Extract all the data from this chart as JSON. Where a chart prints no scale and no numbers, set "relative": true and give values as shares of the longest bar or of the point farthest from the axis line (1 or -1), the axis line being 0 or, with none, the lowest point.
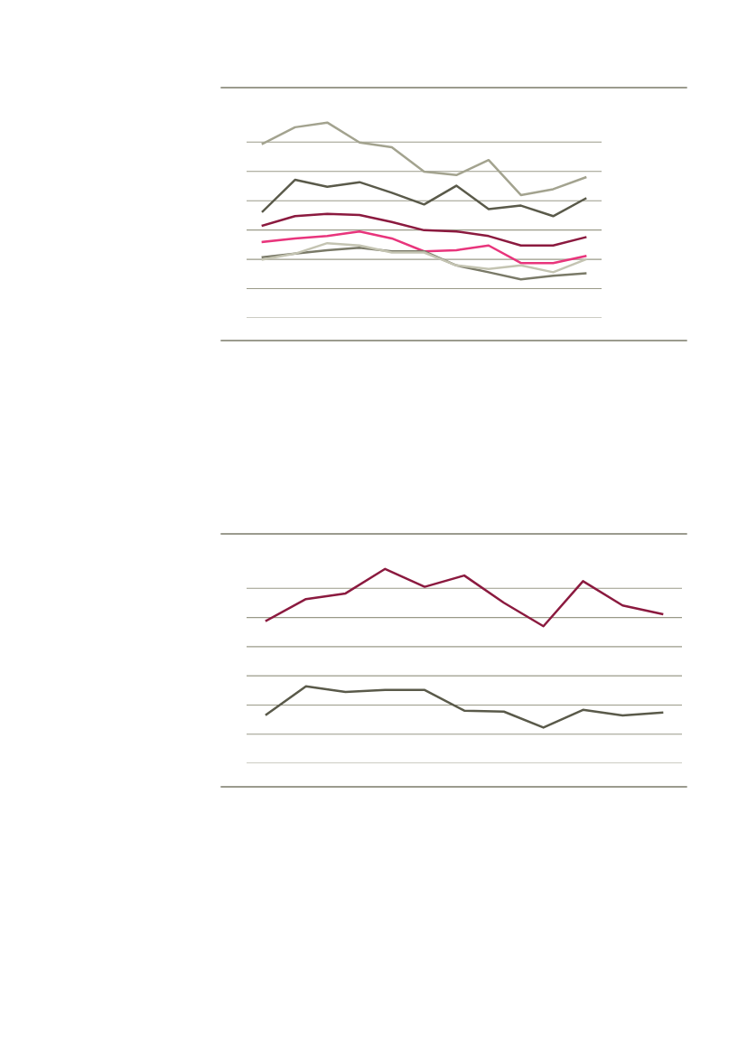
{
  "chart_data": [
    {
      "type": "line",
      "relative": true,
      "grid": "y",
      "categories": [
        null,
        null,
        null,
        null,
        null,
        null,
        null,
        null,
        null,
        null,
        null
      ],
      "series": [
        {
          "color": "#8b1a3f",
          "values": [
            0.473,
            0.521,
            0.533,
            0.527,
            0.491,
            0.449,
            0.443,
            0.419,
            0.371,
            0.371,
            0.413
          ]
        },
        {
          "color": "#a3a38f",
          "values": [
            0.892,
            0.976,
            1,
            0.898,
            0.874,
            0.749,
            0.731,
            0.808,
            0.629,
            0.659,
            0.719
          ]
        },
        {
          "color": "#5a5a4a",
          "values": [
            0.545,
            0.707,
            0.671,
            0.695,
            0.641,
            0.581,
            0.677,
            0.557,
            0.575,
            0.521,
            0.611
          ]
        },
        {
          "color": "#e8357c",
          "values": [
            0.389,
            0.407,
            0.419,
            0.443,
            0.407,
            0.341,
            0.347,
            0.371,
            0.281,
            0.281,
            0.317
          ]
        },
        {
          "color": "#7a7a68",
          "values": [
            0.311,
            0.329,
            0.347,
            0.359,
            0.341,
            0.341,
            0.269,
            0.234,
            0.198,
            0.216,
            0.228
          ]
        },
        {
          "color": "#c4c4b2",
          "values": [
            0.299,
            0.329,
            0.383,
            0.371,
            0.335,
            0.335,
            0.269,
            0.251,
            0.269,
            0.234,
            0.299
          ]
        }
      ]
    },
    {
      "type": "line",
      "relative": true,
      "grid": "y",
      "categories": [
        null,
        null,
        null,
        null,
        null,
        null,
        null,
        null,
        null,
        null,
        null
      ],
      "series": [
        {
          "color": "#8b1a3f",
          "values": [
            0.734,
            0.845,
            0.874,
            1,
            0.908,
            0.966,
            0.826,
            0.705,
            0.937,
            0.812,
            0.768
          ]
        },
        {
          "color": "#5a5a4a",
          "values": [
            0.251,
            0.396,
            0.367,
            0.377,
            0.377,
            0.271,
            0.266,
            0.184,
            0.275,
            0.246,
            0.261
          ]
        }
      ]
    }
  ]
}
